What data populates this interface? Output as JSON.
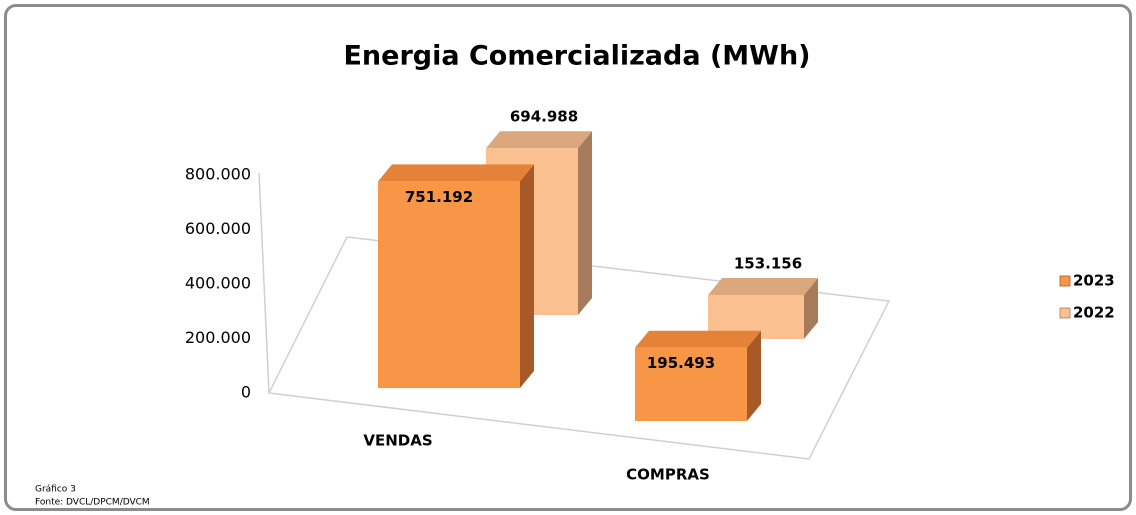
{
  "chart_data": {
    "type": "bar3d",
    "title": "Energia Comercializada (MWh)",
    "categories": [
      "VENDAS",
      "COMPRAS"
    ],
    "series": [
      {
        "name": "2023",
        "color": "#f79646",
        "values": [
          751192,
          195493
        ],
        "value_labels": [
          "751.192",
          "195.493"
        ]
      },
      {
        "name": "2022",
        "color": "#fac090",
        "values": [
          694988,
          153156
        ],
        "value_labels": [
          "694.988",
          "153.156"
        ]
      }
    ],
    "ylim": [
      0,
      800000
    ],
    "yticks": [
      0,
      {
        "value": 200000,
        "label": "200.000"
      },
      {
        "value": 400000,
        "label": "400.000"
      },
      {
        "value": 600000,
        "label": "600.000"
      },
      {
        "value": 800000,
        "label": "800.000"
      }
    ],
    "legend": "right",
    "notes": [
      "Gráfico 3",
      "Fonte: DVCL/DPCM/DVCM"
    ]
  }
}
